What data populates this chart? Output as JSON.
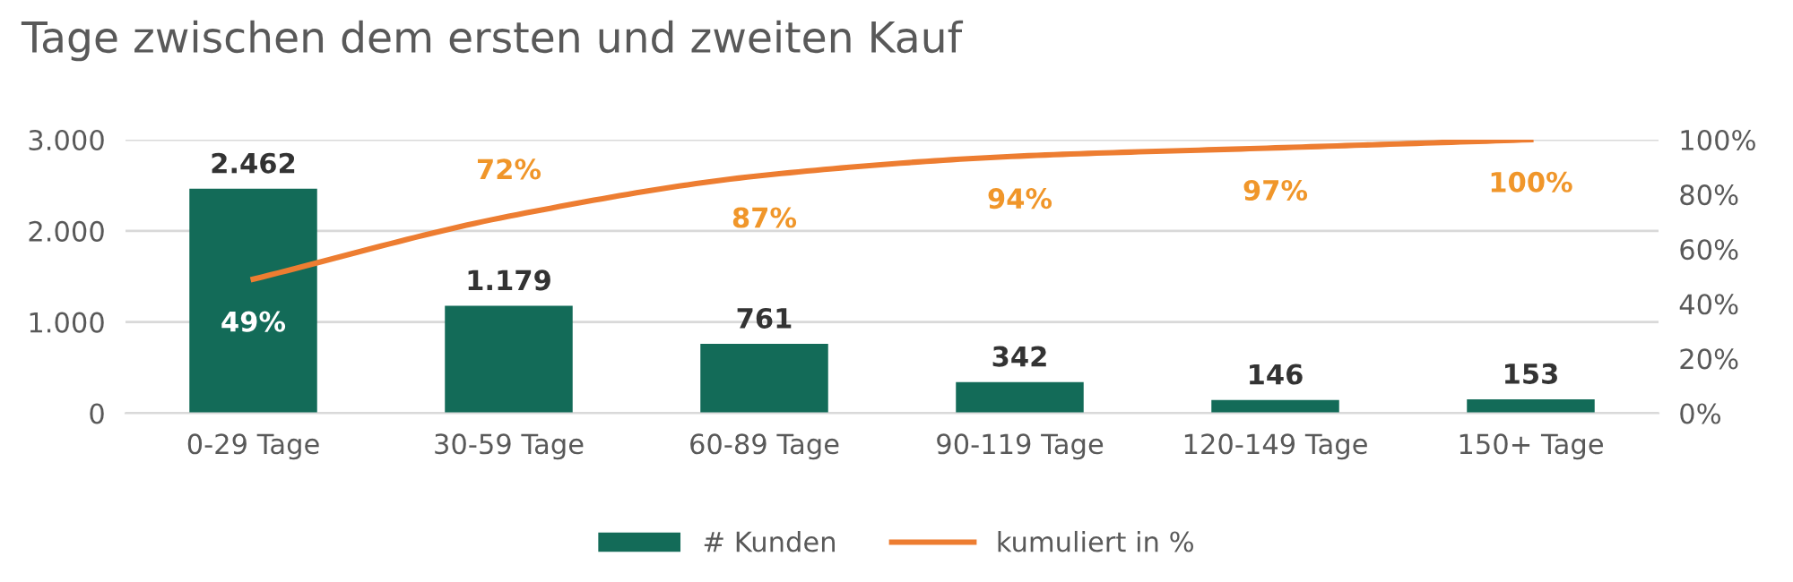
{
  "chart_data": {
    "type": "bar",
    "title": "Tage zwischen dem ersten und zweiten Kauf",
    "categories": [
      "0-29 Tage",
      "30-59 Tage",
      "60-89 Tage",
      "90-119 Tage",
      "120-149 Tage",
      "150+ Tage"
    ],
    "series": [
      {
        "name": "# Kunden",
        "color": "#136b58",
        "values": [
          2462,
          1179,
          761,
          342,
          146,
          153
        ],
        "value_labels": [
          "2.462",
          "1.179",
          "761",
          "342",
          "146",
          "153"
        ]
      },
      {
        "name": "kumuliert in %",
        "type": "line",
        "axis": "y2",
        "color": "#ed7d31",
        "values": [
          49,
          72,
          87,
          94,
          97,
          100
        ],
        "value_labels": [
          "49%",
          "72%",
          "87%",
          "94%",
          "97%",
          "100%"
        ]
      }
    ],
    "ylim": [
      0,
      3000
    ],
    "yticks": [
      {
        "value": 0,
        "label": "0"
      },
      {
        "value": 1000,
        "label": "1.000"
      },
      {
        "value": 2000,
        "label": "2.000"
      },
      {
        "value": 3000,
        "label": "3.000"
      }
    ],
    "y2lim": [
      0,
      100
    ],
    "y2ticks": [
      {
        "value": 0,
        "label": "0%"
      },
      {
        "value": 20,
        "label": "20%"
      },
      {
        "value": 40,
        "label": "40%"
      },
      {
        "value": 60,
        "label": "60%"
      },
      {
        "value": 80,
        "label": "80%"
      },
      {
        "value": 100,
        "label": "100%"
      }
    ],
    "grid": "y",
    "legend": "bottom"
  }
}
